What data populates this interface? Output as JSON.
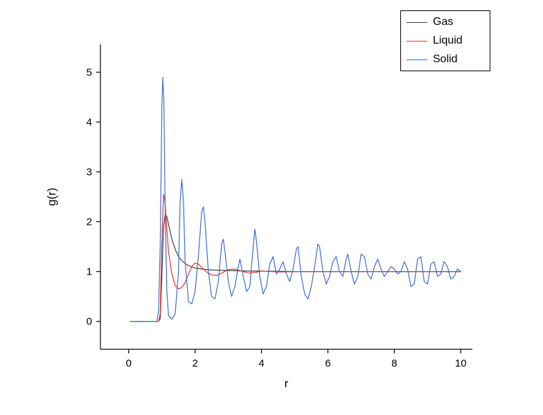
{
  "chart_data": {
    "type": "line",
    "title": "",
    "xlabel": "r",
    "ylabel": "g(r)",
    "xlim": [
      -0.85,
      10.35
    ],
    "ylim": [
      -0.56,
      5.56
    ],
    "xticks": [
      0,
      2,
      4,
      6,
      8,
      10
    ],
    "yticks": [
      0,
      1,
      2,
      3,
      4,
      5
    ],
    "grid": false,
    "legend_position": "top-right",
    "series": [
      {
        "name": "Gas",
        "color": "#3c3c3c",
        "points": [
          [
            0.05,
            0
          ],
          [
            0.9,
            0
          ],
          [
            0.95,
            0.05
          ],
          [
            1.0,
            0.9
          ],
          [
            1.05,
            1.9
          ],
          [
            1.1,
            2.15
          ],
          [
            1.15,
            2.1
          ],
          [
            1.2,
            1.95
          ],
          [
            1.3,
            1.65
          ],
          [
            1.4,
            1.45
          ],
          [
            1.5,
            1.3
          ],
          [
            1.6,
            1.22
          ],
          [
            1.7,
            1.16
          ],
          [
            1.8,
            1.12
          ],
          [
            2.0,
            1.07
          ],
          [
            2.2,
            1.05
          ],
          [
            2.5,
            1.03
          ],
          [
            3.0,
            1.02
          ],
          [
            3.5,
            1.01
          ],
          [
            4.0,
            1.01
          ],
          [
            5.0,
            1.0
          ],
          [
            6.0,
            1.0
          ],
          [
            7.0,
            1.0
          ],
          [
            8.0,
            1.0
          ],
          [
            9.0,
            1.0
          ],
          [
            10.0,
            1.0
          ]
        ]
      },
      {
        "name": "Liquid",
        "color": "#e5332b",
        "points": [
          [
            0.05,
            0
          ],
          [
            0.9,
            0
          ],
          [
            0.95,
            0.15
          ],
          [
            1.0,
            1.6
          ],
          [
            1.05,
            2.55
          ],
          [
            1.1,
            2.35
          ],
          [
            1.15,
            1.85
          ],
          [
            1.2,
            1.4
          ],
          [
            1.3,
            0.95
          ],
          [
            1.4,
            0.72
          ],
          [
            1.5,
            0.65
          ],
          [
            1.6,
            0.68
          ],
          [
            1.7,
            0.78
          ],
          [
            1.8,
            0.95
          ],
          [
            1.9,
            1.1
          ],
          [
            2.0,
            1.17
          ],
          [
            2.1,
            1.15
          ],
          [
            2.2,
            1.08
          ],
          [
            2.35,
            0.99
          ],
          [
            2.5,
            0.93
          ],
          [
            2.65,
            0.92
          ],
          [
            2.8,
            0.97
          ],
          [
            3.0,
            1.04
          ],
          [
            3.2,
            1.05
          ],
          [
            3.4,
            1.01
          ],
          [
            3.6,
            0.97
          ],
          [
            3.8,
            0.98
          ],
          [
            4.0,
            1.01
          ],
          [
            4.3,
            1.0
          ],
          [
            4.6,
            0.99
          ],
          [
            5.0,
            1.0
          ],
          [
            6.0,
            1.0
          ],
          [
            7.0,
            1.0
          ],
          [
            8.0,
            1.0
          ],
          [
            9.0,
            1.0
          ],
          [
            10.0,
            1.0
          ]
        ]
      },
      {
        "name": "Solid",
        "color": "#3b6cd0",
        "points": [
          [
            0.05,
            0
          ],
          [
            0.85,
            0
          ],
          [
            0.9,
            0.2
          ],
          [
            0.95,
            1.5
          ],
          [
            1.0,
            4.3
          ],
          [
            1.03,
            4.9
          ],
          [
            1.06,
            4.4
          ],
          [
            1.1,
            2.2
          ],
          [
            1.15,
            0.6
          ],
          [
            1.2,
            0.12
          ],
          [
            1.3,
            0.04
          ],
          [
            1.4,
            0.15
          ],
          [
            1.5,
            1.0
          ],
          [
            1.55,
            2.4
          ],
          [
            1.6,
            2.85
          ],
          [
            1.65,
            2.4
          ],
          [
            1.7,
            1.2
          ],
          [
            1.8,
            0.4
          ],
          [
            1.9,
            0.35
          ],
          [
            2.0,
            0.6
          ],
          [
            2.1,
            1.3
          ],
          [
            2.2,
            2.2
          ],
          [
            2.25,
            2.3
          ],
          [
            2.3,
            2.0
          ],
          [
            2.4,
            1.0
          ],
          [
            2.5,
            0.5
          ],
          [
            2.6,
            0.45
          ],
          [
            2.7,
            0.8
          ],
          [
            2.8,
            1.55
          ],
          [
            2.85,
            1.65
          ],
          [
            2.9,
            1.4
          ],
          [
            3.0,
            0.8
          ],
          [
            3.1,
            0.5
          ],
          [
            3.2,
            0.7
          ],
          [
            3.3,
            1.1
          ],
          [
            3.35,
            1.25
          ],
          [
            3.45,
            0.9
          ],
          [
            3.55,
            0.6
          ],
          [
            3.65,
            0.7
          ],
          [
            3.75,
            1.5
          ],
          [
            3.8,
            1.85
          ],
          [
            3.85,
            1.6
          ],
          [
            3.95,
            0.9
          ],
          [
            4.05,
            0.55
          ],
          [
            4.15,
            0.7
          ],
          [
            4.25,
            1.15
          ],
          [
            4.35,
            1.3
          ],
          [
            4.45,
            0.95
          ],
          [
            4.55,
            1.05
          ],
          [
            4.65,
            1.2
          ],
          [
            4.75,
            0.95
          ],
          [
            4.85,
            0.8
          ],
          [
            4.95,
            1.05
          ],
          [
            5.05,
            1.45
          ],
          [
            5.1,
            1.5
          ],
          [
            5.2,
            0.9
          ],
          [
            5.3,
            0.55
          ],
          [
            5.4,
            0.45
          ],
          [
            5.5,
            0.7
          ],
          [
            5.6,
            1.1
          ],
          [
            5.7,
            1.55
          ],
          [
            5.75,
            1.5
          ],
          [
            5.85,
            1.0
          ],
          [
            5.95,
            0.75
          ],
          [
            6.05,
            0.9
          ],
          [
            6.15,
            1.2
          ],
          [
            6.25,
            1.3
          ],
          [
            6.35,
            1.0
          ],
          [
            6.45,
            0.9
          ],
          [
            6.55,
            1.25
          ],
          [
            6.6,
            1.35
          ],
          [
            6.7,
            1.0
          ],
          [
            6.8,
            0.75
          ],
          [
            6.9,
            0.9
          ],
          [
            7.0,
            1.35
          ],
          [
            7.1,
            1.3
          ],
          [
            7.2,
            0.95
          ],
          [
            7.3,
            0.85
          ],
          [
            7.4,
            1.1
          ],
          [
            7.5,
            1.25
          ],
          [
            7.6,
            1.05
          ],
          [
            7.7,
            0.9
          ],
          [
            7.8,
            1.0
          ],
          [
            7.9,
            1.1
          ],
          [
            8.0,
            1.05
          ],
          [
            8.1,
            0.95
          ],
          [
            8.2,
            1.0
          ],
          [
            8.3,
            1.2
          ],
          [
            8.4,
            1.05
          ],
          [
            8.5,
            0.7
          ],
          [
            8.6,
            0.75
          ],
          [
            8.7,
            1.25
          ],
          [
            8.8,
            1.3
          ],
          [
            8.9,
            0.8
          ],
          [
            9.0,
            0.75
          ],
          [
            9.1,
            1.15
          ],
          [
            9.2,
            1.2
          ],
          [
            9.3,
            0.9
          ],
          [
            9.4,
            0.95
          ],
          [
            9.5,
            1.2
          ],
          [
            9.6,
            1.1
          ],
          [
            9.7,
            0.85
          ],
          [
            9.8,
            0.9
          ],
          [
            9.9,
            1.05
          ],
          [
            10.0,
            1.0
          ]
        ]
      }
    ]
  }
}
